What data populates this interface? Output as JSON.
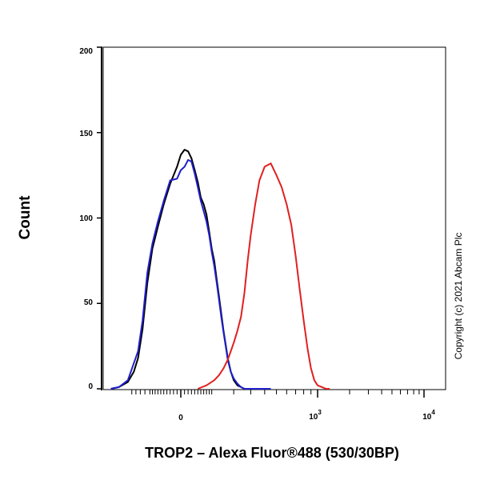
{
  "chart_data": {
    "type": "line",
    "title": "",
    "xlabel": "TROP2 – Alexa Fluor®488 (530/30BP)",
    "ylabel": "Count",
    "x_scale": "biexponential",
    "ylim": [
      0,
      200
    ],
    "yticks": [
      "0",
      "50",
      "100",
      "150",
      "200"
    ],
    "xticks": [
      {
        "base": "0",
        "exp": ""
      },
      {
        "base": "10",
        "exp": "3"
      },
      {
        "base": "10",
        "exp": "4"
      }
    ],
    "grid": false,
    "legend": "none",
    "copyright": "Copyright (c) 2021 Abcam Plc",
    "series": [
      {
        "color": "#000000",
        "x": [
          -300,
          -250,
          -200,
          -170,
          -150,
          -130,
          -110,
          -90,
          -70,
          -50,
          -30,
          -10,
          0,
          10,
          20,
          30,
          40,
          50,
          60,
          70,
          80,
          90,
          100,
          110,
          120,
          130,
          140,
          150,
          160,
          170,
          185,
          200,
          220,
          240,
          260,
          280,
          300,
          330,
          360,
          400,
          450
        ],
        "y": [
          0,
          1,
          4,
          10,
          18,
          35,
          62,
          82,
          95,
          108,
          120,
          130,
          137,
          140,
          139,
          135,
          128,
          121,
          112,
          108,
          102,
          92,
          82,
          75,
          64,
          54,
          44,
          34,
          26,
          18,
          10,
          5,
          2,
          1,
          0,
          0,
          0,
          0,
          0,
          0,
          0
        ]
      },
      {
        "color": "#1f1fcc",
        "x": [
          -300,
          -250,
          -200,
          -170,
          -150,
          -130,
          -110,
          -90,
          -70,
          -50,
          -30,
          -10,
          0,
          10,
          20,
          30,
          40,
          50,
          60,
          70,
          80,
          90,
          100,
          110,
          120,
          130,
          140,
          150,
          160,
          170,
          185,
          200,
          220,
          240,
          260,
          280,
          300,
          330,
          360,
          400,
          450
        ],
        "y": [
          0,
          1,
          5,
          15,
          22,
          40,
          68,
          85,
          98,
          110,
          122,
          123,
          128,
          130,
          134,
          133,
          126,
          118,
          110,
          104,
          98,
          90,
          80,
          72,
          62,
          52,
          42,
          33,
          25,
          17,
          10,
          6,
          3,
          1,
          0,
          0,
          0,
          0,
          0,
          0,
          0
        ]
      },
      {
        "color": "#e02020",
        "x": [
          50,
          80,
          110,
          130,
          150,
          170,
          185,
          200,
          220,
          240,
          260,
          280,
          300,
          330,
          360,
          400,
          450,
          500,
          550,
          600,
          650,
          700,
          750,
          800,
          850,
          900,
          950,
          1000,
          1100,
          1200,
          1300
        ],
        "y": [
          0,
          2,
          5,
          8,
          12,
          17,
          22,
          27,
          34,
          42,
          56,
          75,
          90,
          108,
          122,
          130,
          132,
          125,
          118,
          108,
          96,
          78,
          58,
          40,
          24,
          12,
          5,
          2,
          1,
          0,
          0
        ]
      }
    ]
  }
}
